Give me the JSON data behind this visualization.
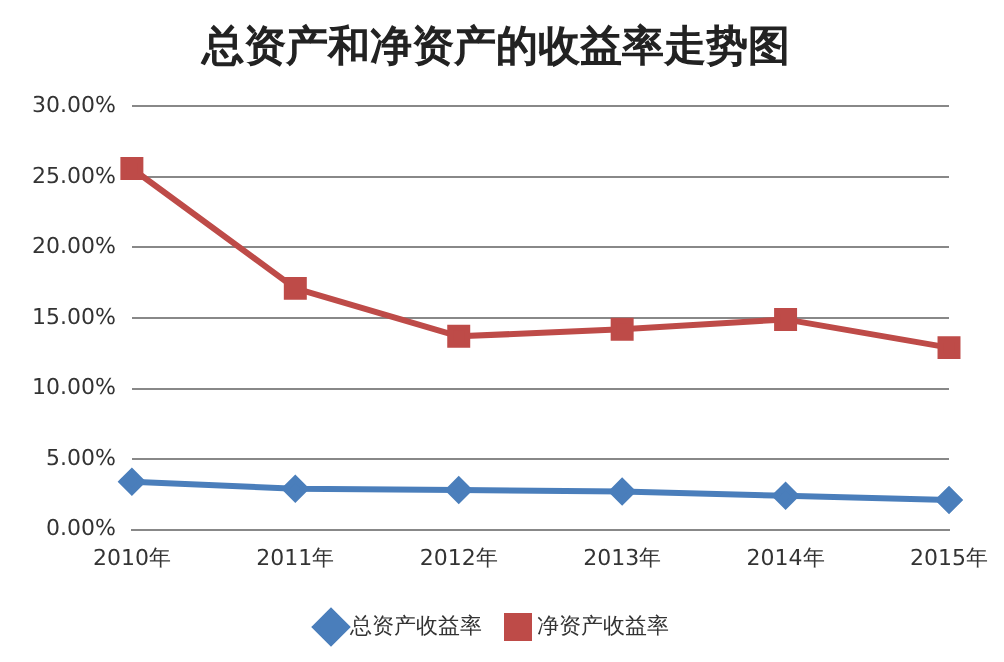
{
  "chart_data": {
    "type": "line",
    "title": "总资产和净资产的收益率走势图",
    "categories": [
      "2010年",
      "2011年",
      "2012年",
      "2013年",
      "2014年",
      "2015年"
    ],
    "series": [
      {
        "name": "总资产收益率",
        "color": "#4a7ebb",
        "marker": "diamond",
        "values": [
          3.4,
          2.9,
          2.8,
          2.7,
          2.4,
          2.1
        ]
      },
      {
        "name": "净资产收益率",
        "color": "#be4b48",
        "marker": "square",
        "values": [
          25.6,
          17.1,
          13.7,
          14.2,
          14.9,
          12.9
        ]
      }
    ],
    "ylim": [
      0,
      30
    ],
    "yticks": [
      {
        "value": 0,
        "label": "0.00%"
      },
      {
        "value": 5,
        "label": "5.00%"
      },
      {
        "value": 10,
        "label": "10.00%"
      },
      {
        "value": 15,
        "label": "15.00%"
      },
      {
        "value": 20,
        "label": "20.00%"
      },
      {
        "value": 25,
        "label": "25.00%"
      },
      {
        "value": 30,
        "label": "30.00%"
      }
    ],
    "grid": "y",
    "legend": "bottom"
  }
}
